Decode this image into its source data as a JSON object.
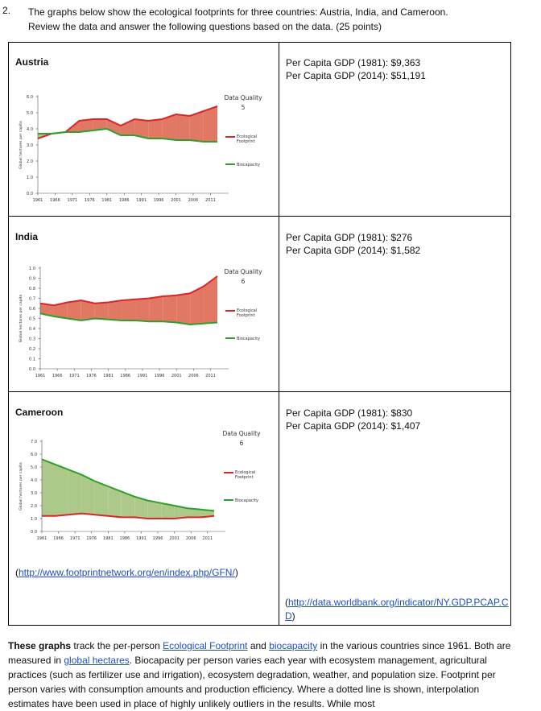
{
  "question": {
    "number": "2.",
    "text": "The graphs below show the ecological footprints for three countries: Austria, India, and Cameroon. Review the data and answer the following questions based on the data. (25 points)"
  },
  "rows": [
    {
      "country": "Austria",
      "gdp": [
        "Per Capita GDP (1981): $9,363",
        "Per Capita GDP (2014): $51,191"
      ],
      "chart": {
        "type": "area-line",
        "y_label": "Global hectares per capita",
        "data_quality_label": "Data Quality",
        "data_quality": "5",
        "x": [
          1961,
          1965,
          1969,
          1973,
          1977,
          1981,
          1985,
          1989,
          1993,
          1997,
          2001,
          2005,
          2009,
          2013
        ],
        "xlim": [
          1961,
          2013
        ],
        "xticks": [
          1961,
          1966,
          1971,
          1976,
          1981,
          1986,
          1991,
          1996,
          2001,
          2006,
          2011
        ],
        "ylim": [
          0,
          6
        ],
        "yticks": [
          {
            "value": 0,
            "label": "0.0"
          },
          {
            "value": 1,
            "label": "1.0"
          },
          {
            "value": 2,
            "label": "2.0"
          },
          {
            "value": 3,
            "label": "3.0"
          },
          {
            "value": 4,
            "label": "4.0"
          },
          {
            "value": 5,
            "label": "5.0"
          },
          {
            "value": 6,
            "label": "6.0"
          }
        ],
        "deficit_color": "#e07863",
        "reserve_color": "#acc98a",
        "series": [
          {
            "name": "Ecological Footprint",
            "color": "#d9262a",
            "values": [
              3.4,
              3.7,
              3.8,
              4.5,
              4.6,
              4.6,
              4.2,
              4.6,
              4.5,
              4.6,
              4.9,
              4.8,
              5.1,
              5.4
            ]
          },
          {
            "name": "Biocapacity",
            "color": "#2ca02c",
            "values": [
              3.7,
              3.7,
              3.8,
              3.8,
              3.9,
              4.0,
              3.6,
              3.6,
              3.4,
              3.4,
              3.3,
              3.3,
              3.2,
              3.2
            ]
          }
        ]
      }
    },
    {
      "country": "India",
      "gdp": [
        "Per Capita GDP (1981): $276",
        "Per Capita GDP (2014): $1,582"
      ],
      "chart": {
        "type": "area-line",
        "y_label": "Global hectares per capita",
        "data_quality_label": "Data Quality",
        "data_quality": "6",
        "x": [
          1961,
          1965,
          1969,
          1973,
          1977,
          1981,
          1985,
          1989,
          1993,
          1997,
          2001,
          2005,
          2009,
          2013
        ],
        "xlim": [
          1961,
          2013
        ],
        "xticks": [
          1961,
          1966,
          1971,
          1976,
          1981,
          1986,
          1991,
          1996,
          2001,
          2006,
          2011
        ],
        "ylim": [
          0,
          1
        ],
        "yticks": [
          {
            "value": 0,
            "label": "0.0"
          },
          0.1,
          0.2,
          0.3,
          0.4,
          0.5,
          0.6,
          0.7,
          0.8,
          0.9,
          {
            "value": 1,
            "label": "1.0"
          }
        ],
        "deficit_color": "#e07863",
        "reserve_color": "#acc98a",
        "series": [
          {
            "name": "Ecological Footprint",
            "color": "#d9262a",
            "values": [
              0.65,
              0.63,
              0.66,
              0.68,
              0.65,
              0.66,
              0.68,
              0.69,
              0.7,
              0.72,
              0.73,
              0.75,
              0.82,
              0.92
            ]
          },
          {
            "name": "Biocapacity",
            "color": "#2ca02c",
            "values": [
              0.55,
              0.52,
              0.5,
              0.48,
              0.5,
              0.49,
              0.48,
              0.48,
              0.47,
              0.47,
              0.46,
              0.44,
              0.45,
              0.46
            ]
          }
        ]
      }
    },
    {
      "country": "Cameroon",
      "gdp": [
        "Per Capita GDP (1981): $830",
        "Per Capita GDP (2014): $1,407"
      ],
      "chart": {
        "type": "area-line",
        "y_label": "Global hectares per capita",
        "data_quality_label": "Data Quality",
        "data_quality": "6",
        "x": [
          1961,
          1965,
          1969,
          1973,
          1977,
          1981,
          1985,
          1989,
          1993,
          1997,
          2001,
          2005,
          2009,
          2013
        ],
        "xlim": [
          1961,
          2013
        ],
        "xticks": [
          1961,
          1966,
          1971,
          1976,
          1981,
          1986,
          1991,
          1996,
          2001,
          2006,
          2011
        ],
        "ylim": [
          0,
          7
        ],
        "yticks": [
          {
            "value": 0,
            "label": "0.0"
          },
          {
            "value": 1,
            "label": "1.0"
          },
          {
            "value": 2,
            "label": "2.0"
          },
          {
            "value": 3,
            "label": "3.0"
          },
          {
            "value": 4,
            "label": "4.0"
          },
          {
            "value": 5,
            "label": "5.0"
          },
          {
            "value": 6,
            "label": "6.0"
          },
          {
            "value": 7,
            "label": "7.0"
          }
        ],
        "deficit_color": "#e07863",
        "reserve_color": "#acc98a",
        "series": [
          {
            "name": "Ecological Footprint",
            "color": "#d9262a",
            "values": [
              1.2,
              1.2,
              1.3,
              1.4,
              1.3,
              1.2,
              1.1,
              1.1,
              1.0,
              1.0,
              1.0,
              1.1,
              1.1,
              1.2
            ]
          },
          {
            "name": "Biocapacity",
            "color": "#2ca02c",
            "values": [
              5.6,
              5.2,
              4.8,
              4.4,
              3.9,
              3.5,
              3.1,
              2.7,
              2.4,
              2.2,
              2.0,
              1.8,
              1.7,
              1.6
            ]
          }
        ]
      }
    }
  ],
  "source_left": {
    "open": "(",
    "link": "http://www.footprintnetwork.org/en/index.php/GFN/",
    "close": ")"
  },
  "source_right": {
    "open": "(",
    "link": "http://data.worldbank.org/indicator/NY.GDP.PCAP.CD",
    "close": ")"
  },
  "paragraph": [
    {
      "text": "These graphs",
      "kind": "bold"
    },
    {
      "text": " track the per-person ",
      "kind": "plain"
    },
    {
      "text": "Ecological Footprint",
      "kind": "link"
    },
    {
      "text": " and ",
      "kind": "plain"
    },
    {
      "text": "biocapacity",
      "kind": "link"
    },
    {
      "text": " in the various countries since 1961. Both are measured in ",
      "kind": "plain"
    },
    {
      "text": "global hectares",
      "kind": "link"
    },
    {
      "text": ". Biocapacity per person varies each year with ecosystem management, agricultural practices (such as fertilizer use and irrigation), ecosystem degradation, weather, and population size. Footprint per person varies with consumption amounts and production efficiency. Where a dotted line is shown, interpolation estimates have been used in place of highly unlikely outliers in the results. While most",
      "kind": "plain"
    }
  ]
}
